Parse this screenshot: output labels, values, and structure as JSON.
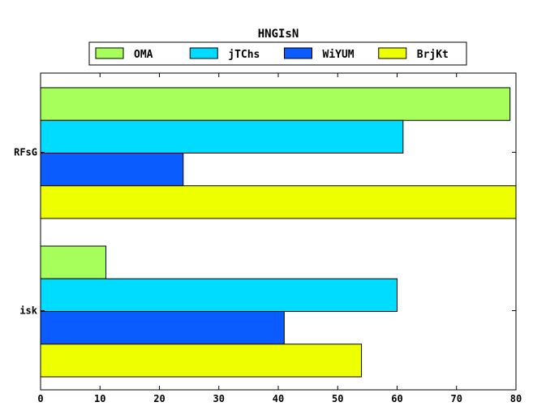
{
  "chart_data": {
    "type": "bar",
    "orientation": "horizontal",
    "title": "HNGIsN",
    "xlabel": "",
    "ylabel": "",
    "categories": [
      "RFsG",
      "isk"
    ],
    "series": [
      {
        "name": "OMA",
        "color": "#a6ff5a",
        "values": [
          79,
          11
        ]
      },
      {
        "name": "jTChs",
        "color": "#00dcff",
        "values": [
          61,
          60
        ]
      },
      {
        "name": "WiYUM",
        "color": "#0a5cff",
        "values": [
          24,
          41
        ]
      },
      {
        "name": "BrjKt",
        "color": "#eeff00",
        "values": [
          80,
          54
        ]
      }
    ],
    "xlim": [
      0,
      80
    ],
    "xticks": [
      0,
      10,
      20,
      30,
      40,
      50,
      60,
      70,
      80
    ],
    "grid": false,
    "legend_position": "top-center"
  }
}
